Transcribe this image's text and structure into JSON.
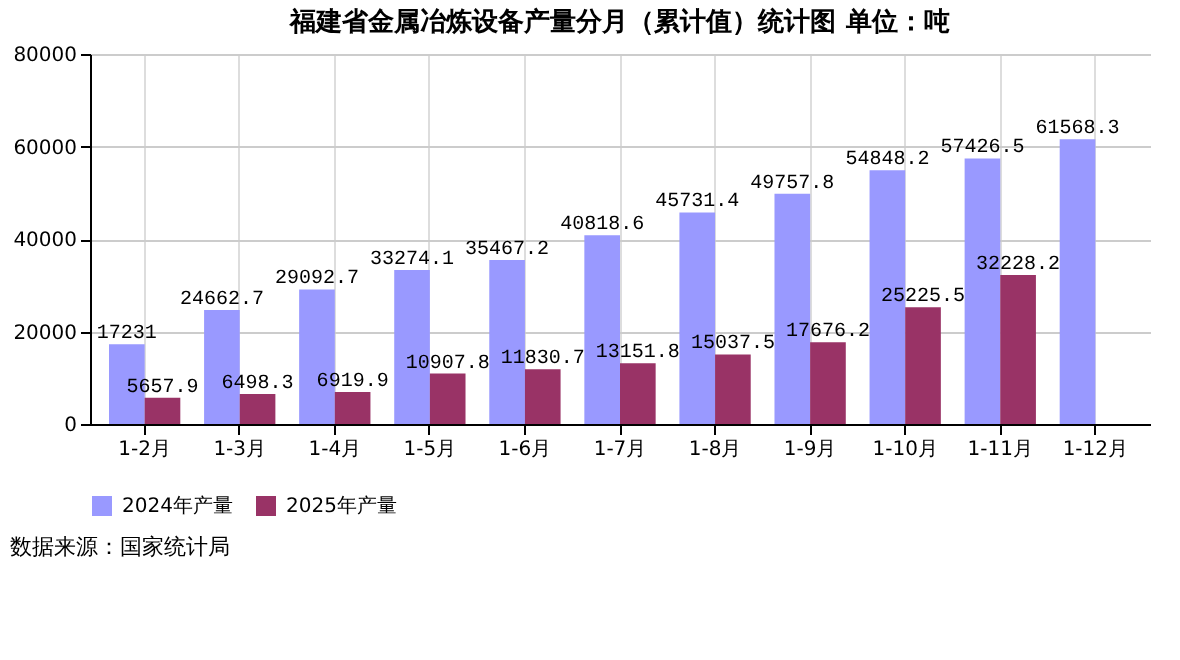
{
  "chart_data": {
    "type": "bar",
    "title": "福建省金属冶炼设备产量分月（累计值）统计图 单位：吨",
    "categories": [
      "1-2月",
      "1-3月",
      "1-4月",
      "1-5月",
      "1-6月",
      "1-7月",
      "1-8月",
      "1-9月",
      "1-10月",
      "1-11月",
      "1-12月"
    ],
    "series": [
      {
        "name": "2024年产量",
        "color": "#9999ff",
        "values": [
          17231,
          24662.7,
          29092.7,
          33274.1,
          35467.2,
          40818.6,
          45731.4,
          49757.8,
          54848.2,
          57426.5,
          61568.3
        ]
      },
      {
        "name": "2025年产量",
        "color": "#993366",
        "values": [
          5657.9,
          6498.3,
          6919.9,
          10907.8,
          11830.7,
          13151.8,
          15037.5,
          17676.2,
          25225.5,
          32228.2,
          null
        ]
      }
    ],
    "ylim": [
      0,
      80000
    ],
    "yticks": [
      0,
      20000,
      40000,
      60000,
      80000
    ],
    "grid": true,
    "legend": "bottom",
    "data_labels": true,
    "annotations": [
      "数据来源：国家统计局"
    ]
  }
}
